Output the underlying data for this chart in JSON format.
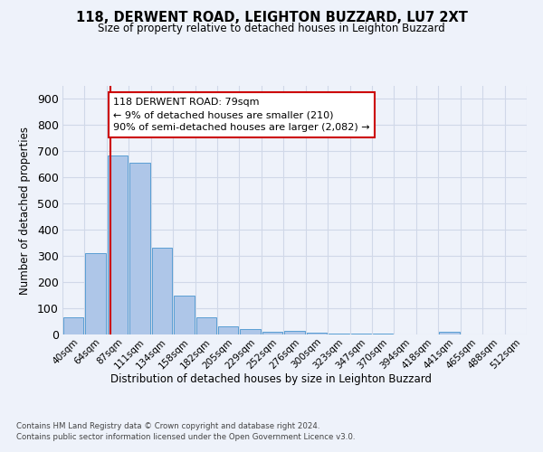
{
  "title": "118, DERWENT ROAD, LEIGHTON BUZZARD, LU7 2XT",
  "subtitle": "Size of property relative to detached houses in Leighton Buzzard",
  "xlabel": "Distribution of detached houses by size in Leighton Buzzard",
  "ylabel": "Number of detached properties",
  "footnote": "Contains HM Land Registry data © Crown copyright and database right 2024.\nContains public sector information licensed under the Open Government Licence v3.0.",
  "bin_labels": [
    "40sqm",
    "64sqm",
    "87sqm",
    "111sqm",
    "134sqm",
    "158sqm",
    "182sqm",
    "205sqm",
    "229sqm",
    "252sqm",
    "276sqm",
    "300sqm",
    "323sqm",
    "347sqm",
    "370sqm",
    "394sqm",
    "418sqm",
    "441sqm",
    "465sqm",
    "488sqm",
    "512sqm"
  ],
  "bar_heights": [
    65,
    310,
    685,
    655,
    330,
    150,
    65,
    32,
    20,
    12,
    14,
    7,
    5,
    3,
    2,
    0,
    0,
    10,
    0,
    0,
    0
  ],
  "bar_color": "#aec6e8",
  "bar_edge_color": "#5a9fd4",
  "grid_color": "#d0d8e8",
  "property_line_color": "#cc0000",
  "annotation_text": "118 DERWENT ROAD: 79sqm\n← 9% of detached houses are smaller (210)\n90% of semi-detached houses are larger (2,082) →",
  "annotation_box_color": "#cc0000",
  "ylim": [
    0,
    950
  ],
  "yticks": [
    0,
    100,
    200,
    300,
    400,
    500,
    600,
    700,
    800,
    900
  ],
  "background_color": "#eef2fa"
}
